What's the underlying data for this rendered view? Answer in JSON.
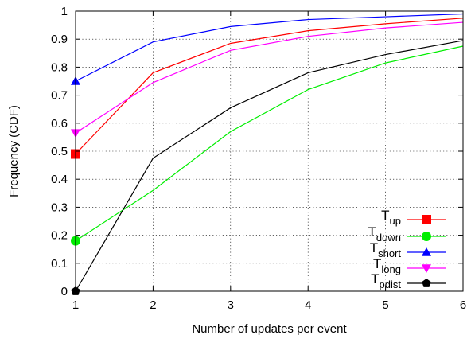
{
  "chart_data": {
    "type": "line",
    "xlabel": "Number of updates per event",
    "ylabel": "Frequency (CDF)",
    "xlim": [
      1,
      6
    ],
    "ylim": [
      0,
      1
    ],
    "xticks": [
      "1",
      "2",
      "3",
      "4",
      "5",
      "6"
    ],
    "yticks": [
      "0",
      "0.1",
      "0.2",
      "0.3",
      "0.4",
      "0.5",
      "0.6",
      "0.7",
      "0.8",
      "0.9",
      "1"
    ],
    "grid": true,
    "legend_position": "bottom-right",
    "x": [
      1,
      2,
      3,
      4,
      5,
      6
    ],
    "series": [
      {
        "name": "T",
        "sub": "up",
        "color": "#ff0000",
        "marker": "square",
        "values": [
          0.49,
          0.78,
          0.885,
          0.93,
          0.955,
          0.975
        ]
      },
      {
        "name": "T",
        "sub": "down",
        "color": "#00ee00",
        "marker": "circle",
        "values": [
          0.18,
          0.36,
          0.57,
          0.72,
          0.815,
          0.875
        ]
      },
      {
        "name": "T",
        "sub": "short",
        "color": "#0000ff",
        "marker": "triangle-up",
        "values": [
          0.75,
          0.89,
          0.945,
          0.97,
          0.98,
          0.99
        ]
      },
      {
        "name": "T",
        "sub": "long",
        "color": "#ff00ff",
        "marker": "triangle-down",
        "values": [
          0.565,
          0.745,
          0.86,
          0.91,
          0.94,
          0.96
        ]
      },
      {
        "name": "T",
        "sub": "pdist",
        "color": "#000000",
        "marker": "pentagon",
        "values": [
          0.0,
          0.475,
          0.655,
          0.78,
          0.845,
          0.895
        ]
      }
    ]
  }
}
